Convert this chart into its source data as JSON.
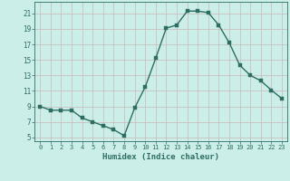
{
  "x": [
    0,
    1,
    2,
    3,
    4,
    5,
    6,
    7,
    8,
    9,
    10,
    11,
    12,
    13,
    14,
    15,
    16,
    17,
    18,
    19,
    20,
    21,
    22,
    23
  ],
  "y": [
    9.0,
    8.5,
    8.5,
    8.5,
    7.5,
    7.0,
    6.5,
    6.0,
    5.2,
    8.8,
    11.5,
    15.2,
    19.1,
    19.5,
    21.3,
    21.3,
    21.1,
    19.5,
    17.2,
    14.3,
    13.0,
    12.3,
    11.1,
    10.0
  ],
  "line_color": "#2d6e63",
  "marker_color": "#2d6e63",
  "bg_color": "#cceee8",
  "grid_color": "#c8b8b8",
  "xlabel": "Humidex (Indice chaleur)",
  "xlim": [
    -0.5,
    23.5
  ],
  "ylim": [
    4.5,
    22.5
  ],
  "yticks": [
    5,
    7,
    9,
    11,
    13,
    15,
    17,
    19,
    21
  ],
  "xticks": [
    0,
    1,
    2,
    3,
    4,
    5,
    6,
    7,
    8,
    9,
    10,
    11,
    12,
    13,
    14,
    15,
    16,
    17,
    18,
    19,
    20,
    21,
    22,
    23
  ],
  "xtick_labels": [
    "0",
    "1",
    "2",
    "3",
    "4",
    "5",
    "6",
    "7",
    "8",
    "9",
    "10",
    "11",
    "12",
    "13",
    "14",
    "15",
    "16",
    "17",
    "18",
    "19",
    "20",
    "21",
    "22",
    "23"
  ],
  "font_color": "#2d6e63",
  "linewidth": 1.0,
  "markersize": 2.5
}
